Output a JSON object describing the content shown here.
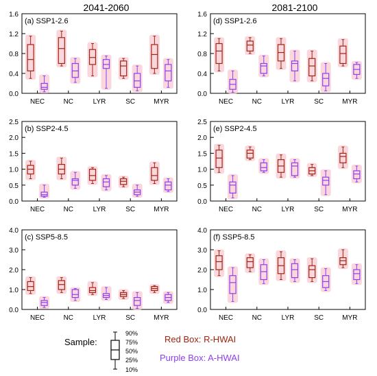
{
  "column_titles": [
    "2041-2060",
    "2081-2100"
  ],
  "categories": [
    "NEC",
    "NC",
    "LYR",
    "SC",
    "MYR"
  ],
  "colors": {
    "red": "#a0230f",
    "purple": "#8b3ff0",
    "halo": "#f7c6cf"
  },
  "legend": {
    "sample_label": "Sample:",
    "percentiles": [
      "90%",
      "75%",
      "50%",
      "25%",
      "10%"
    ],
    "red_label": "Red Box: R-HWAI",
    "purple_label": "Purple Box: A-HWAI"
  },
  "chart_data": [
    {
      "type": "box",
      "panel_label": "(a) SSP1-2.6",
      "ylim": [
        0,
        1.6
      ],
      "yticks": [
        "0.0",
        "0.4",
        "0.8",
        "1.2",
        "1.6"
      ],
      "series": [
        {
          "name": "R-HWAI",
          "boxes": [
            [
              0.3,
              0.45,
              0.68,
              0.98,
              1.15
            ],
            [
              0.55,
              0.6,
              0.9,
              1.12,
              1.25
            ],
            [
              0.35,
              0.58,
              0.72,
              0.88,
              1.0
            ],
            [
              0.3,
              0.35,
              0.55,
              0.65,
              0.7
            ],
            [
              0.4,
              0.5,
              0.78,
              0.98,
              1.15
            ]
          ]
        },
        {
          "name": "A-HWAI",
          "boxes": [
            [
              0.03,
              0.08,
              0.12,
              0.2,
              0.35
            ],
            [
              0.22,
              0.32,
              0.45,
              0.6,
              0.7
            ],
            [
              0.1,
              0.5,
              0.58,
              0.68,
              0.75
            ],
            [
              0.05,
              0.12,
              0.25,
              0.4,
              0.55
            ],
            [
              0.12,
              0.25,
              0.45,
              0.58,
              0.68
            ]
          ]
        }
      ]
    },
    {
      "type": "box",
      "panel_label": "(d) SSP1-2.6",
      "ylim": [
        0,
        1.6
      ],
      "yticks": [
        "0.0",
        "0.4",
        "0.8",
        "1.2",
        "1.6"
      ],
      "series": [
        {
          "name": "R-HWAI",
          "boxes": [
            [
              0.45,
              0.6,
              0.85,
              1.0,
              1.1
            ],
            [
              0.8,
              0.85,
              0.97,
              1.05,
              1.12
            ],
            [
              0.5,
              0.65,
              0.82,
              0.98,
              1.1
            ],
            [
              0.25,
              0.35,
              0.55,
              0.7,
              0.85
            ],
            [
              0.55,
              0.6,
              0.8,
              0.95,
              1.08
            ]
          ]
        },
        {
          "name": "A-HWAI",
          "boxes": [
            [
              0.02,
              0.08,
              0.18,
              0.28,
              0.45
            ],
            [
              0.35,
              0.4,
              0.55,
              0.6,
              0.75
            ],
            [
              0.25,
              0.45,
              0.6,
              0.65,
              0.85
            ],
            [
              0.05,
              0.15,
              0.3,
              0.4,
              0.6
            ],
            [
              0.3,
              0.38,
              0.48,
              0.58,
              0.62
            ]
          ]
        }
      ]
    },
    {
      "type": "box",
      "panel_label": "(b) SSP2-4.5",
      "ylim": [
        0,
        2.5
      ],
      "yticks": [
        "0.0",
        "0.5",
        "1.0",
        "1.5",
        "2.0",
        "2.5"
      ],
      "series": [
        {
          "name": "R-HWAI",
          "boxes": [
            [
              0.7,
              0.85,
              1.0,
              1.12,
              1.25
            ],
            [
              0.7,
              0.85,
              1.0,
              1.15,
              1.35
            ],
            [
              0.55,
              0.65,
              0.8,
              1.0,
              1.05
            ],
            [
              0.45,
              0.52,
              0.62,
              0.7,
              0.75
            ],
            [
              0.55,
              0.65,
              0.8,
              1.05,
              1.2
            ]
          ]
        },
        {
          "name": "A-HWAI",
          "boxes": [
            [
              0.12,
              0.15,
              0.2,
              0.28,
              0.5
            ],
            [
              0.4,
              0.5,
              0.65,
              0.7,
              0.9
            ],
            [
              0.35,
              0.45,
              0.6,
              0.7,
              0.8
            ],
            [
              0.15,
              0.2,
              0.28,
              0.35,
              0.5
            ],
            [
              0.3,
              0.35,
              0.5,
              0.6,
              0.7
            ]
          ]
        }
      ]
    },
    {
      "type": "box",
      "panel_label": "(e) SSP2-4.5",
      "ylim": [
        0,
        2.5
      ],
      "yticks": [
        "0.0",
        "0.5",
        "1.0",
        "1.5",
        "2.0",
        "2.5"
      ],
      "series": [
        {
          "name": "R-HWAI",
          "boxes": [
            [
              0.9,
              1.05,
              1.35,
              1.6,
              1.75
            ],
            [
              1.3,
              1.35,
              1.5,
              1.6,
              1.7
            ],
            [
              0.75,
              0.9,
              1.1,
              1.3,
              1.45
            ],
            [
              0.8,
              0.85,
              0.95,
              1.05,
              1.15
            ],
            [
              1.05,
              1.2,
              1.4,
              1.5,
              1.7
            ]
          ]
        },
        {
          "name": "A-HWAI",
          "boxes": [
            [
              0.1,
              0.25,
              0.5,
              0.6,
              0.8
            ],
            [
              0.9,
              0.95,
              1.05,
              1.2,
              1.3
            ],
            [
              0.75,
              0.8,
              1.1,
              1.2,
              1.3
            ],
            [
              0.2,
              0.5,
              0.65,
              0.75,
              0.95
            ],
            [
              0.6,
              0.7,
              0.85,
              0.95,
              1.1
            ]
          ]
        }
      ]
    },
    {
      "type": "box",
      "panel_label": "(c) SSP5-8.5",
      "ylim": [
        0,
        4.0
      ],
      "yticks": [
        "0.0",
        "1.0",
        "2.0",
        "3.0",
        "4.0"
      ],
      "series": [
        {
          "name": "R-HWAI",
          "boxes": [
            [
              0.8,
              0.95,
              1.15,
              1.4,
              1.6
            ],
            [
              0.85,
              1.0,
              1.25,
              1.45,
              1.6
            ],
            [
              0.75,
              0.85,
              0.95,
              1.1,
              1.35
            ],
            [
              0.55,
              0.65,
              0.75,
              0.85,
              0.95
            ],
            [
              0.85,
              0.95,
              1.05,
              1.15,
              1.2
            ]
          ]
        },
        {
          "name": "A-HWAI",
          "boxes": [
            [
              0.1,
              0.2,
              0.35,
              0.45,
              0.6
            ],
            [
              0.45,
              0.6,
              0.75,
              1.0,
              1.05
            ],
            [
              0.5,
              0.6,
              0.7,
              0.8,
              1.1
            ],
            [
              0.05,
              0.2,
              0.45,
              0.6,
              0.85
            ],
            [
              0.35,
              0.45,
              0.6,
              0.75,
              0.85
            ]
          ]
        }
      ]
    },
    {
      "type": "box",
      "panel_label": "(f) SSP5-8.5",
      "ylim": [
        0,
        4.0
      ],
      "yticks": [
        "0.0",
        "1.0",
        "2.0",
        "3.0",
        "4.0"
      ],
      "series": [
        {
          "name": "R-HWAI",
          "boxes": [
            [
              1.7,
              2.0,
              2.4,
              2.7,
              2.95
            ],
            [
              1.9,
              2.1,
              2.4,
              2.6,
              2.75
            ],
            [
              1.5,
              1.8,
              2.2,
              2.6,
              2.9
            ],
            [
              1.4,
              1.6,
              2.0,
              2.2,
              2.55
            ],
            [
              2.1,
              2.25,
              2.45,
              2.6,
              3.0
            ]
          ]
        },
        {
          "name": "A-HWAI",
          "boxes": [
            [
              0.4,
              0.8,
              1.35,
              1.7,
              2.1
            ],
            [
              1.3,
              1.5,
              1.9,
              2.25,
              2.5
            ],
            [
              1.4,
              1.6,
              2.0,
              2.3,
              2.5
            ],
            [
              0.95,
              1.1,
              1.4,
              1.7,
              2.05
            ],
            [
              1.3,
              1.5,
              1.8,
              2.0,
              2.25
            ]
          ]
        }
      ]
    }
  ]
}
